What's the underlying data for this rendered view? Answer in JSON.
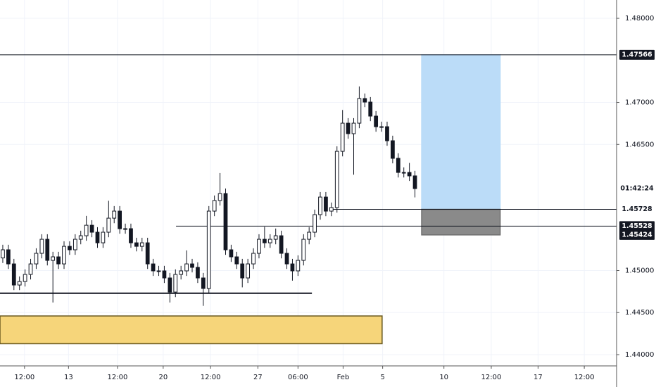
{
  "chart_data": {
    "type": "candlestick",
    "color": "#131722",
    "up_fill": "#ffffff",
    "grid": true,
    "xlim": [
      -0.5,
      110.2
    ],
    "ylim": [
      1.43866,
      1.48218
    ],
    "xticks": [
      {
        "value": 3.9,
        "label": "12:00"
      },
      {
        "value": 11.8,
        "label": "13"
      },
      {
        "value": 20.6,
        "label": "12:00"
      },
      {
        "value": 28.8,
        "label": "20"
      },
      {
        "value": 37.3,
        "label": "12:00"
      },
      {
        "value": 45.8,
        "label": "27"
      },
      {
        "value": 53.0,
        "label": "06:00"
      },
      {
        "value": 61.1,
        "label": "Feb"
      },
      {
        "value": 68.2,
        "label": "5"
      },
      {
        "value": 79.2,
        "label": "10"
      },
      {
        "value": 87.7,
        "label": "12:00"
      },
      {
        "value": 96.1,
        "label": "17"
      },
      {
        "value": 104.4,
        "label": "12:00"
      }
    ],
    "yticks": [
      {
        "value": 1.48,
        "label": "1.48000"
      },
      {
        "value": 1.47,
        "label": "1.47000"
      },
      {
        "value": 1.465,
        "label": "1.46500"
      },
      {
        "value": 1.45,
        "label": "1.45000"
      },
      {
        "value": 1.445,
        "label": "1.44500"
      },
      {
        "value": 1.44,
        "label": "1.44000"
      }
    ],
    "x": [
      0,
      1,
      2,
      3,
      4,
      5,
      6,
      7,
      8,
      9,
      10,
      11,
      12,
      13,
      14,
      15,
      16,
      17,
      18,
      19,
      20,
      21,
      22,
      23,
      24,
      25,
      26,
      27,
      28,
      29,
      30,
      31,
      32,
      33,
      34,
      35,
      36,
      37,
      38,
      39,
      40,
      41,
      42,
      43,
      44,
      45,
      46,
      47,
      48,
      49,
      50,
      51,
      52,
      53,
      54,
      55,
      56,
      57,
      58,
      59,
      60,
      61,
      62,
      63,
      64,
      65,
      66,
      67,
      68,
      69,
      70,
      71,
      72,
      73,
      74
    ],
    "open": [
      1.4515,
      1.45247,
      1.45079,
      1.44828,
      1.4487,
      1.44954,
      1.45079,
      1.45205,
      1.45372,
      1.45121,
      1.45163,
      1.45079,
      1.45288,
      1.45247,
      1.45372,
      1.45414,
      1.45539,
      1.45456,
      1.4533,
      1.45456,
      1.45623,
      1.45707,
      1.45498,
      1.45498,
      1.4533,
      1.45288,
      1.4533,
      1.45079,
      1.44996,
      1.44996,
      1.44912,
      1.44744,
      1.44954,
      1.44996,
      1.45079,
      1.45038,
      1.44912,
      1.44787,
      1.45707,
      1.45833,
      1.45916,
      1.45247,
      1.45163,
      1.45079,
      1.44912,
      1.45079,
      1.45205,
      1.45372,
      1.4533,
      1.45372,
      1.45414,
      1.45205,
      1.45079,
      1.44996,
      1.45121,
      1.45372,
      1.45456,
      1.45665,
      1.45874,
      1.45707,
      1.45749,
      1.46418,
      1.46753,
      1.46628,
      1.46753,
      1.47046,
      1.47004,
      1.46837,
      1.46711,
      1.46711,
      1.46544,
      1.46335,
      1.46167,
      1.46167,
      1.46126
    ],
    "high": [
      1.45307,
      1.45307,
      1.45139,
      1.4493,
      1.45014,
      1.45139,
      1.45265,
      1.45432,
      1.45432,
      1.45223,
      1.45223,
      1.45348,
      1.45348,
      1.45432,
      1.45474,
      1.4565,
      1.45599,
      1.45516,
      1.45516,
      1.4583,
      1.45767,
      1.45767,
      1.45558,
      1.45558,
      1.4539,
      1.4539,
      1.4539,
      1.45139,
      1.45056,
      1.45056,
      1.44972,
      1.45014,
      1.45056,
      1.4524,
      1.45139,
      1.45098,
      1.44972,
      1.45767,
      1.45893,
      1.4616,
      1.45976,
      1.45307,
      1.45223,
      1.45139,
      1.45139,
      1.45265,
      1.45432,
      1.4552,
      1.45432,
      1.455,
      1.45474,
      1.45265,
      1.45139,
      1.45181,
      1.45432,
      1.45516,
      1.45725,
      1.45934,
      1.45934,
      1.45809,
      1.46478,
      1.4691,
      1.46813,
      1.46813,
      1.4719,
      1.47106,
      1.47064,
      1.46897,
      1.46771,
      1.46771,
      1.46604,
      1.46395,
      1.46227,
      1.4628,
      1.46186
    ],
    "low": [
      1.4509,
      1.45019,
      1.44768,
      1.44768,
      1.4481,
      1.44894,
      1.45019,
      1.45145,
      1.45061,
      1.4462,
      1.45019,
      1.45019,
      1.45187,
      1.45187,
      1.45312,
      1.45354,
      1.45396,
      1.4527,
      1.4527,
      1.45396,
      1.45563,
      1.45438,
      1.45438,
      1.4527,
      1.45228,
      1.45228,
      1.45019,
      1.44936,
      1.44936,
      1.44852,
      1.4462,
      1.44684,
      1.44894,
      1.44936,
      1.44978,
      1.44852,
      1.4458,
      1.44727,
      1.45647,
      1.45773,
      1.45187,
      1.45103,
      1.45019,
      1.448,
      1.44852,
      1.45019,
      1.45145,
      1.4527,
      1.4527,
      1.45312,
      1.45145,
      1.45019,
      1.4488,
      1.44936,
      1.45061,
      1.45312,
      1.45396,
      1.45605,
      1.45647,
      1.45647,
      1.45689,
      1.46358,
      1.46568,
      1.4614,
      1.46693,
      1.46944,
      1.46777,
      1.46651,
      1.46651,
      1.46484,
      1.46275,
      1.46107,
      1.46107,
      1.46066,
      1.4587
    ],
    "close": [
      1.45247,
      1.45079,
      1.44828,
      1.4487,
      1.44954,
      1.45079,
      1.45205,
      1.45372,
      1.45121,
      1.45163,
      1.45079,
      1.45288,
      1.45247,
      1.45372,
      1.45414,
      1.45539,
      1.45456,
      1.4533,
      1.45456,
      1.45623,
      1.45707,
      1.45498,
      1.45498,
      1.4533,
      1.45288,
      1.4533,
      1.45079,
      1.44996,
      1.44996,
      1.44912,
      1.44744,
      1.44954,
      1.44996,
      1.45079,
      1.45038,
      1.44912,
      1.44787,
      1.45707,
      1.45833,
      1.45916,
      1.45247,
      1.45163,
      1.45079,
      1.44912,
      1.45079,
      1.45205,
      1.45372,
      1.4533,
      1.45372,
      1.45414,
      1.45205,
      1.45079,
      1.44996,
      1.45121,
      1.45372,
      1.45456,
      1.45665,
      1.45874,
      1.45707,
      1.45749,
      1.46418,
      1.46753,
      1.46628,
      1.46753,
      1.47046,
      1.47004,
      1.46837,
      1.46711,
      1.46711,
      1.46544,
      1.46335,
      1.46167,
      1.46167,
      1.46126,
      1.45975
    ],
    "lines": [
      {
        "price": 1.47566,
        "x_start": -0.5,
        "x_end": 110.2,
        "color": "#131722",
        "line_width": 1
      },
      {
        "price": 1.45728,
        "x_start": 59,
        "x_end": 110.2,
        "color": "#131722",
        "line_width": 1
      },
      {
        "price": 1.45528,
        "x_start": 31.1,
        "x_end": 110.2,
        "color": "#131722",
        "line_width": 1
      },
      {
        "price": 1.4473,
        "x_start": -0.5,
        "x_end": 55.5,
        "color": "#131722",
        "line_width": 2
      }
    ],
    "zones": [
      {
        "top": 1.4446,
        "bottom": 1.4413,
        "x_start": -0.5,
        "x_end": 68.1,
        "color": "#f6d57a",
        "border": "#6b5a20"
      },
      {
        "top": 1.47566,
        "bottom": 1.45728,
        "x_start": 75.2,
        "x_end": 89.3,
        "color": "#bbdcf8",
        "border": "#bbdcf8"
      },
      {
        "top": 1.45728,
        "bottom": 1.45424,
        "x_start": 75.2,
        "x_end": 89.3,
        "color": "#8a8a8a",
        "border": "#6e6e6e"
      }
    ],
    "price_tags": [
      {
        "value": 1.47566,
        "label": "1.47566",
        "background": "#131722",
        "text_color": "#ffffff"
      },
      {
        "value": 1.45975,
        "label": "01:42:24",
        "background": "#ffffff",
        "text_color": "#131722"
      },
      {
        "value": 1.45728,
        "label": "1.45728",
        "background": "#ffffff",
        "text_color": "#131722"
      },
      {
        "value": 1.45528,
        "label": "1.45528",
        "background": "#131722",
        "text_color": "#ffffff"
      },
      {
        "value": 1.45424,
        "label": "1.45424",
        "background": "#131722",
        "text_color": "#ffffff"
      }
    ]
  }
}
